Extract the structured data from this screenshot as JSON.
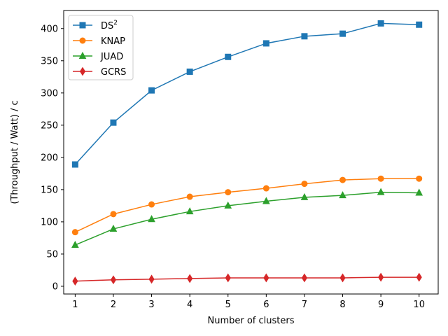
{
  "chart_data": {
    "type": "line",
    "x": [
      1,
      2,
      3,
      4,
      5,
      6,
      7,
      8,
      9,
      10
    ],
    "xlabel": "Number of clusters",
    "ylabel": "(Throughput / Watt) / c",
    "xlim": [
      0.7,
      10.5
    ],
    "ylim": [
      -12,
      428
    ],
    "xticks": [
      1,
      2,
      3,
      4,
      5,
      6,
      7,
      8,
      9,
      10
    ],
    "yticks": [
      0,
      50,
      100,
      150,
      200,
      250,
      300,
      350,
      400
    ],
    "grid": false,
    "legend_position": "top-left",
    "series": [
      {
        "name": "DS",
        "name_superscript": "2",
        "color": "#1f77b4",
        "marker": "square",
        "values": [
          189,
          254,
          304,
          333,
          356,
          377,
          388,
          392,
          408,
          406
        ]
      },
      {
        "name": "KNAP",
        "color": "#ff7f0e",
        "marker": "circle",
        "values": [
          84,
          112,
          127,
          139,
          146,
          152,
          159,
          165,
          167,
          167
        ]
      },
      {
        "name": "JUAD",
        "color": "#2ca02c",
        "marker": "triangle",
        "values": [
          64,
          89,
          104,
          116,
          125,
          132,
          138,
          141,
          146,
          145
        ]
      },
      {
        "name": "GCRS",
        "color": "#d62728",
        "marker": "diamond",
        "values": [
          8,
          10,
          11,
          12,
          13,
          13,
          13,
          13,
          14,
          14
        ]
      }
    ]
  }
}
